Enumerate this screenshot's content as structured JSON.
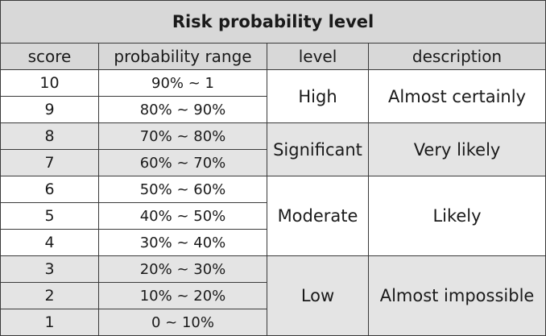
{
  "table": {
    "title": "Risk probability level",
    "headers": {
      "score": "score",
      "range": "probability range",
      "level": "level",
      "description": "description"
    },
    "groups": [
      {
        "level": "High",
        "description": "Almost certainly",
        "rows": [
          {
            "score": "10",
            "range": "90% ~ 1"
          },
          {
            "score": "9",
            "range": "80% ~ 90%"
          }
        ]
      },
      {
        "level": "Significant",
        "description": "Very likely",
        "rows": [
          {
            "score": "8",
            "range": "70% ~ 80%"
          },
          {
            "score": "7",
            "range": "60% ~ 70%"
          }
        ]
      },
      {
        "level": "Moderate",
        "description": "Likely",
        "rows": [
          {
            "score": "6",
            "range": "50% ~ 60%"
          },
          {
            "score": "5",
            "range": "40% ~ 50%"
          },
          {
            "score": "4",
            "range": "30% ~ 40%"
          }
        ]
      },
      {
        "level": "Low",
        "description": "Almost impossible",
        "rows": [
          {
            "score": "3",
            "range": "20% ~ 30%"
          },
          {
            "score": "2",
            "range": "10% ~ 20%"
          },
          {
            "score": "1",
            "range": "0 ~ 10%"
          }
        ]
      }
    ]
  },
  "colors": {
    "header_bg": "#d8d8d8",
    "row_band_gray": "#e4e4e4",
    "row_band_white": "#ffffff",
    "border": "#3a3a3a"
  }
}
